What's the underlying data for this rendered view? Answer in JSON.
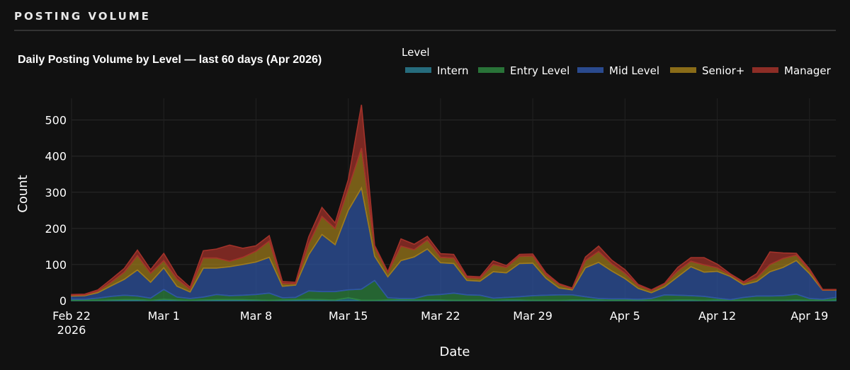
{
  "section": {
    "title": "POSTING VOLUME"
  },
  "chart_data": {
    "type": "area",
    "title": "Daily Posting Volume by Level — last 60 days (Apr 2026)",
    "xlabel": "Date",
    "ylabel": "Count",
    "legend_title": "Level",
    "legend_position": "top-right",
    "stacked": true,
    "grid": true,
    "ylim": [
      0,
      560
    ],
    "yticks": [
      0,
      100,
      200,
      300,
      400,
      500
    ],
    "xticks": [
      {
        "date": "2026-02-22",
        "label": "Feb 22",
        "sublabel": "2026"
      },
      {
        "date": "2026-03-01",
        "label": "Mar 1"
      },
      {
        "date": "2026-03-08",
        "label": "Mar 8"
      },
      {
        "date": "2026-03-15",
        "label": "Mar 15"
      },
      {
        "date": "2026-03-22",
        "label": "Mar 22"
      },
      {
        "date": "2026-03-29",
        "label": "Mar 29"
      },
      {
        "date": "2026-04-05",
        "label": "Apr 5"
      },
      {
        "date": "2026-04-12",
        "label": "Apr 12"
      },
      {
        "date": "2026-04-19",
        "label": "Apr 19"
      }
    ],
    "x": [
      "2026-02-22",
      "2026-02-23",
      "2026-02-24",
      "2026-02-25",
      "2026-02-26",
      "2026-02-27",
      "2026-02-28",
      "2026-03-01",
      "2026-03-02",
      "2026-03-03",
      "2026-03-04",
      "2026-03-05",
      "2026-03-06",
      "2026-03-07",
      "2026-03-08",
      "2026-03-09",
      "2026-03-10",
      "2026-03-11",
      "2026-03-12",
      "2026-03-13",
      "2026-03-14",
      "2026-03-15",
      "2026-03-16",
      "2026-03-17",
      "2026-03-18",
      "2026-03-19",
      "2026-03-20",
      "2026-03-21",
      "2026-03-22",
      "2026-03-23",
      "2026-03-24",
      "2026-03-25",
      "2026-03-26",
      "2026-03-27",
      "2026-03-28",
      "2026-03-29",
      "2026-03-30",
      "2026-03-31",
      "2026-04-01",
      "2026-04-02",
      "2026-04-03",
      "2026-04-04",
      "2026-04-05",
      "2026-04-06",
      "2026-04-07",
      "2026-04-08",
      "2026-04-09",
      "2026-04-10",
      "2026-04-11",
      "2026-04-12",
      "2026-04-13",
      "2026-04-14",
      "2026-04-15",
      "2026-04-16",
      "2026-04-17",
      "2026-04-18",
      "2026-04-19",
      "2026-04-20",
      "2026-04-21"
    ],
    "series": [
      {
        "name": "Intern",
        "color": "#2a7d91",
        "values": [
          1,
          1,
          1,
          2,
          3,
          3,
          1,
          4,
          2,
          1,
          2,
          3,
          3,
          3,
          2,
          1,
          2,
          3,
          4,
          3,
          2,
          8,
          1,
          1,
          2,
          3,
          2,
          2,
          2,
          1,
          1,
          1,
          1,
          2,
          2,
          1,
          1,
          1,
          2,
          2,
          2,
          1,
          1,
          2,
          1,
          1,
          2,
          2,
          1,
          2,
          1,
          1,
          1,
          1,
          1,
          2,
          1,
          1,
          2
        ]
      },
      {
        "name": "Entry Level",
        "color": "#2e8540",
        "values": [
          3,
          3,
          6,
          10,
          12,
          10,
          6,
          27,
          8,
          5,
          8,
          14,
          11,
          12,
          15,
          20,
          6,
          6,
          23,
          22,
          23,
          22,
          31,
          55,
          6,
          3,
          4,
          13,
          15,
          20,
          15,
          14,
          6,
          7,
          9,
          13,
          14,
          15,
          14,
          9,
          4,
          4,
          4,
          2,
          5,
          15,
          13,
          12,
          11,
          5,
          2,
          8,
          12,
          12,
          13,
          16,
          5,
          3,
          7
        ]
      },
      {
        "name": "Mid Level",
        "color": "#2f55a4",
        "values": [
          9,
          10,
          15,
          29,
          44,
          72,
          44,
          60,
          30,
          18,
          80,
          73,
          80,
          85,
          90,
          99,
          32,
          34,
          100,
          158,
          130,
          220,
          280,
          67,
          58,
          105,
          115,
          128,
          88,
          82,
          40,
          39,
          73,
          68,
          92,
          90,
          47,
          19,
          14,
          80,
          100,
          77,
          56,
          30,
          16,
          22,
          51,
          80,
          67,
          74,
          64,
          35,
          40,
          67,
          78,
          93,
          69,
          25,
          20
        ]
      },
      {
        "name": "Senior+",
        "color": "#a07c1a",
        "values": [
          2,
          2,
          4,
          10,
          20,
          40,
          25,
          20,
          20,
          8,
          28,
          28,
          15,
          20,
          30,
          45,
          8,
          4,
          30,
          50,
          45,
          60,
          110,
          25,
          12,
          40,
          20,
          25,
          15,
          15,
          8,
          8,
          20,
          15,
          20,
          20,
          10,
          10,
          3,
          20,
          30,
          20,
          15,
          8,
          6,
          8,
          16,
          15,
          20,
          10,
          4,
          5,
          10,
          20,
          25,
          15,
          9,
          1,
          1
        ]
      },
      {
        "name": "Manager",
        "color": "#a3322a",
        "values": [
          2,
          2,
          4,
          8,
          10,
          15,
          10,
          20,
          10,
          5,
          20,
          25,
          45,
          25,
          15,
          15,
          5,
          4,
          20,
          25,
          15,
          25,
          120,
          5,
          2,
          20,
          15,
          10,
          10,
          10,
          4,
          4,
          10,
          5,
          5,
          5,
          5,
          2,
          2,
          10,
          15,
          10,
          10,
          3,
          2,
          2,
          10,
          10,
          20,
          10,
          3,
          3,
          12,
          35,
          15,
          5,
          4,
          1,
          1
        ]
      }
    ]
  }
}
